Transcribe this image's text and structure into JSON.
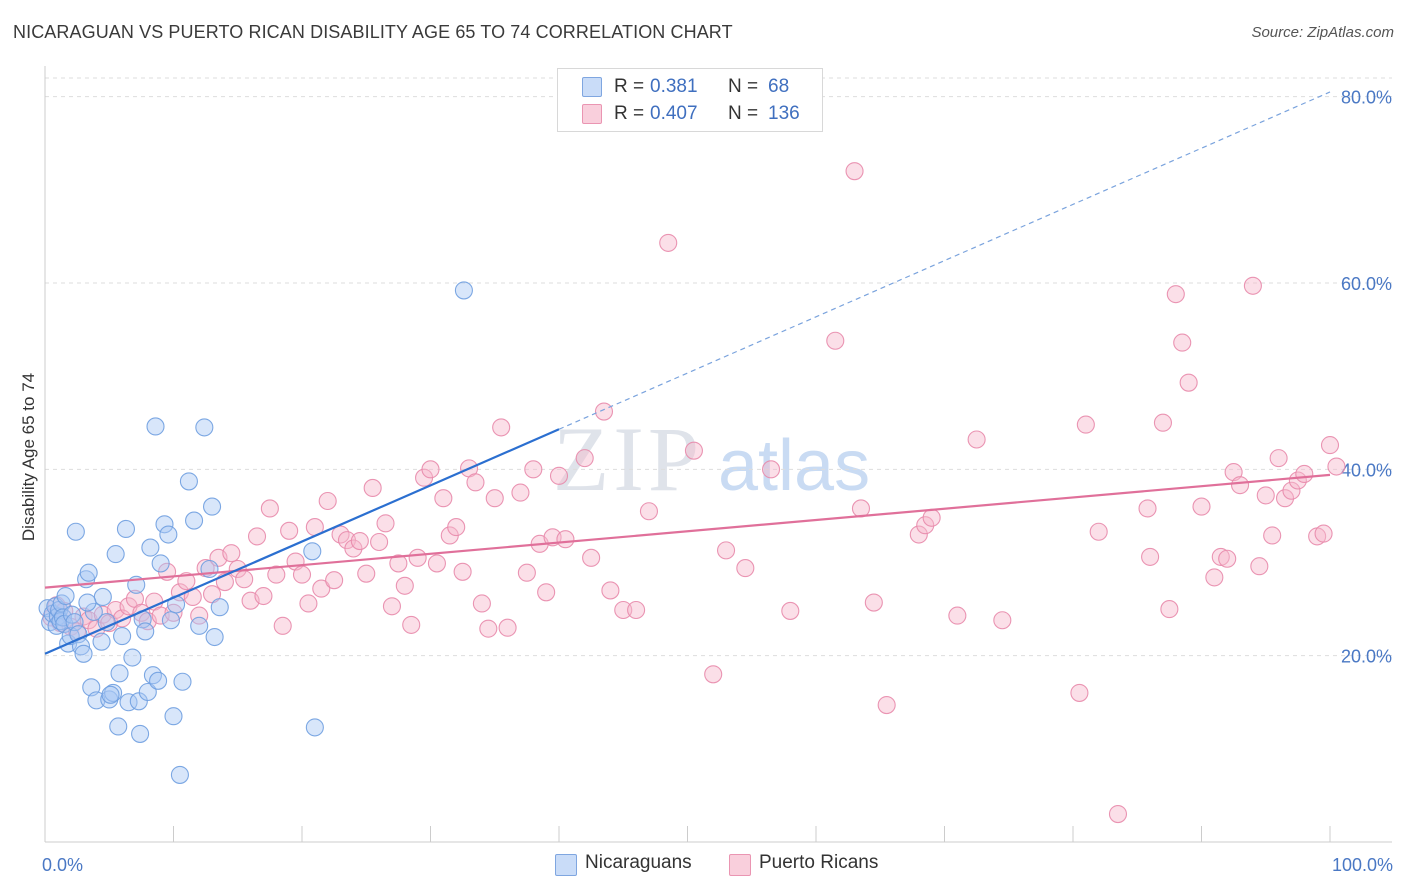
{
  "title": "NICARAGUAN VS PUERTO RICAN DISABILITY AGE 65 TO 74 CORRELATION CHART",
  "source": "Source: ZipAtlas.com",
  "watermark": {
    "zip": "ZIP",
    "atlas": "atlas"
  },
  "legend": {
    "rows": [
      {
        "r_label": "R =",
        "r_value": "0.381",
        "n_label": "N =",
        "n_value": "68",
        "color": "#a9c8f5"
      },
      {
        "r_label": "R =",
        "r_value": "0.407",
        "n_label": "N =",
        "n_value": "136",
        "color": "#f7b8cc"
      }
    ]
  },
  "bottom_legend": {
    "series1": "Nicaraguans",
    "series2": "Puerto Ricans"
  },
  "chart_data": {
    "type": "scatter",
    "title": "NICARAGUAN VS PUERTO RICAN DISABILITY AGE 65 TO 74 CORRELATION CHART",
    "xlabel": "",
    "ylabel": "Disability Age 65 to 74",
    "xlim": [
      0,
      100
    ],
    "ylim": [
      0,
      82
    ],
    "x_tick_labels": [
      {
        "value": 0,
        "label": "0.0%"
      },
      {
        "value": 100,
        "label": "100.0%"
      }
    ],
    "y_tick_labels": [
      {
        "value": 20,
        "label": "20.0%"
      },
      {
        "value": 40,
        "label": "40.0%"
      },
      {
        "value": 60,
        "label": "60.0%"
      },
      {
        "value": 80,
        "label": "80.0%"
      }
    ],
    "grid": true,
    "series": [
      {
        "name": "Nicaraguans",
        "color": "#6f9fe0",
        "fill": "#a9c8f5",
        "trend": {
          "x0": 0,
          "y0": 20.2,
          "x1": 40,
          "y1": 44.3,
          "dashed_to_x": 100,
          "dashed_to_y": 80.5,
          "color": "#2b6fd0"
        },
        "points": [
          [
            0.2,
            25.1
          ],
          [
            0.4,
            23.6
          ],
          [
            0.6,
            24.5
          ],
          [
            0.8,
            25.3
          ],
          [
            0.9,
            23.2
          ],
          [
            1.0,
            24.2
          ],
          [
            1.1,
            24.9
          ],
          [
            1.2,
            23.7
          ],
          [
            1.3,
            25.6
          ],
          [
            1.4,
            24.1
          ],
          [
            1.5,
            23.4
          ],
          [
            1.6,
            26.4
          ],
          [
            1.8,
            21.3
          ],
          [
            2.0,
            22.1
          ],
          [
            2.1,
            24.4
          ],
          [
            2.3,
            23.6
          ],
          [
            2.6,
            22.3
          ],
          [
            2.8,
            21.0
          ],
          [
            3.0,
            20.2
          ],
          [
            3.2,
            28.2
          ],
          [
            3.4,
            28.9
          ],
          [
            3.6,
            16.6
          ],
          [
            3.8,
            24.7
          ],
          [
            4.0,
            15.2
          ],
          [
            4.4,
            21.5
          ],
          [
            4.5,
            26.3
          ],
          [
            4.8,
            23.6
          ],
          [
            5.0,
            15.3
          ],
          [
            5.3,
            16.0
          ],
          [
            5.5,
            30.9
          ],
          [
            5.7,
            12.4
          ],
          [
            5.8,
            18.1
          ],
          [
            6.0,
            22.1
          ],
          [
            6.3,
            33.6
          ],
          [
            6.5,
            15.0
          ],
          [
            6.8,
            19.8
          ],
          [
            7.1,
            27.6
          ],
          [
            7.3,
            15.1
          ],
          [
            7.4,
            11.6
          ],
          [
            7.6,
            23.9
          ],
          [
            7.8,
            22.6
          ],
          [
            8.0,
            16.1
          ],
          [
            8.2,
            31.6
          ],
          [
            8.4,
            17.9
          ],
          [
            8.6,
            44.6
          ],
          [
            8.8,
            17.3
          ],
          [
            9.0,
            29.9
          ],
          [
            9.3,
            34.1
          ],
          [
            9.6,
            33.0
          ],
          [
            10.0,
            13.5
          ],
          [
            10.2,
            25.5
          ],
          [
            10.5,
            7.2
          ],
          [
            10.7,
            17.2
          ],
          [
            11.2,
            38.7
          ],
          [
            11.6,
            34.5
          ],
          [
            12.0,
            23.2
          ],
          [
            12.4,
            44.5
          ],
          [
            12.8,
            29.3
          ],
          [
            13.2,
            22.0
          ],
          [
            13.0,
            36.0
          ],
          [
            13.6,
            25.2
          ],
          [
            20.8,
            31.2
          ],
          [
            21.0,
            12.3
          ],
          [
            32.6,
            59.2
          ],
          [
            2.4,
            33.3
          ],
          [
            5.1,
            15.8
          ],
          [
            9.8,
            23.8
          ],
          [
            3.3,
            25.7
          ]
        ]
      },
      {
        "name": "Puerto Ricans",
        "color": "#e88aab",
        "fill": "#f7b8cc",
        "trend": {
          "x0": 0,
          "y0": 27.3,
          "x1": 100,
          "y1": 39.4,
          "color": "#e0709a"
        },
        "points": [
          [
            0.5,
            24.1
          ],
          [
            0.9,
            25.4
          ],
          [
            1.2,
            23.5
          ],
          [
            1.5,
            24.8
          ],
          [
            2.0,
            23.1
          ],
          [
            2.5,
            22.6
          ],
          [
            3.0,
            24.2
          ],
          [
            3.4,
            23.8
          ],
          [
            4.0,
            22.9
          ],
          [
            4.5,
            24.4
          ],
          [
            5.0,
            23.5
          ],
          [
            5.5,
            24.9
          ],
          [
            6.0,
            24.0
          ],
          [
            6.5,
            25.3
          ],
          [
            7.0,
            26.1
          ],
          [
            7.5,
            24.6
          ],
          [
            8.0,
            23.7
          ],
          [
            8.5,
            25.8
          ],
          [
            9.0,
            24.3
          ],
          [
            9.5,
            29.0
          ],
          [
            10.0,
            24.6
          ],
          [
            10.5,
            26.8
          ],
          [
            11.0,
            28.0
          ],
          [
            11.5,
            26.3
          ],
          [
            12.0,
            24.3
          ],
          [
            12.5,
            29.4
          ],
          [
            13.0,
            26.6
          ],
          [
            13.5,
            30.5
          ],
          [
            14.0,
            27.9
          ],
          [
            14.5,
            31.0
          ],
          [
            15.0,
            29.3
          ],
          [
            15.5,
            28.2
          ],
          [
            16.0,
            25.9
          ],
          [
            16.5,
            32.8
          ],
          [
            17.0,
            26.4
          ],
          [
            17.5,
            35.8
          ],
          [
            18.0,
            28.7
          ],
          [
            18.5,
            23.2
          ],
          [
            19.0,
            33.4
          ],
          [
            19.5,
            30.1
          ],
          [
            20.0,
            28.7
          ],
          [
            20.5,
            25.6
          ],
          [
            21.0,
            33.8
          ],
          [
            21.5,
            27.2
          ],
          [
            22.0,
            36.6
          ],
          [
            22.5,
            28.1
          ],
          [
            23.0,
            33.0
          ],
          [
            23.5,
            32.4
          ],
          [
            24.0,
            31.5
          ],
          [
            24.5,
            32.3
          ],
          [
            25.0,
            28.8
          ],
          [
            25.5,
            38.0
          ],
          [
            26.0,
            32.2
          ],
          [
            26.5,
            34.2
          ],
          [
            27.0,
            25.3
          ],
          [
            27.5,
            29.9
          ],
          [
            28.0,
            27.5
          ],
          [
            28.5,
            23.3
          ],
          [
            29.0,
            30.5
          ],
          [
            29.5,
            39.1
          ],
          [
            30.0,
            40.0
          ],
          [
            30.5,
            29.9
          ],
          [
            31.0,
            36.9
          ],
          [
            31.5,
            32.9
          ],
          [
            32.0,
            33.8
          ],
          [
            32.5,
            29.0
          ],
          [
            33.0,
            40.1
          ],
          [
            33.5,
            38.6
          ],
          [
            34.0,
            25.6
          ],
          [
            34.5,
            22.9
          ],
          [
            35.0,
            36.9
          ],
          [
            35.5,
            44.5
          ],
          [
            36.0,
            23.0
          ],
          [
            37.0,
            37.5
          ],
          [
            37.5,
            28.9
          ],
          [
            38.0,
            40.0
          ],
          [
            38.5,
            32.0
          ],
          [
            39.0,
            26.8
          ],
          [
            39.5,
            32.7
          ],
          [
            40.0,
            39.3
          ],
          [
            40.5,
            32.5
          ],
          [
            42.0,
            41.2
          ],
          [
            42.5,
            30.5
          ],
          [
            43.5,
            46.2
          ],
          [
            44.0,
            27.0
          ],
          [
            45.0,
            24.9
          ],
          [
            46.0,
            24.9
          ],
          [
            47.0,
            35.5
          ],
          [
            48.5,
            64.3
          ],
          [
            50.5,
            42.0
          ],
          [
            53.0,
            31.3
          ],
          [
            54.5,
            29.4
          ],
          [
            56.5,
            40.0
          ],
          [
            58.0,
            24.8
          ],
          [
            61.5,
            53.8
          ],
          [
            63.0,
            72.0
          ],
          [
            63.5,
            35.8
          ],
          [
            64.5,
            25.7
          ],
          [
            65.5,
            14.7
          ],
          [
            68.0,
            33.0
          ],
          [
            68.5,
            34.0
          ],
          [
            69.0,
            34.8
          ],
          [
            71.0,
            24.3
          ],
          [
            72.5,
            43.2
          ],
          [
            74.5,
            23.8
          ],
          [
            81.0,
            44.8
          ],
          [
            83.5,
            3.0
          ],
          [
            80.5,
            16.0
          ],
          [
            82.0,
            33.3
          ],
          [
            86.0,
            30.6
          ],
          [
            87.0,
            45.0
          ],
          [
            87.5,
            25.0
          ],
          [
            88.0,
            58.8
          ],
          [
            88.5,
            53.6
          ],
          [
            89.0,
            49.3
          ],
          [
            90.0,
            36.0
          ],
          [
            91.0,
            28.4
          ],
          [
            91.5,
            30.6
          ],
          [
            92.0,
            30.4
          ],
          [
            92.5,
            39.7
          ],
          [
            93.0,
            38.3
          ],
          [
            94.0,
            59.7
          ],
          [
            94.5,
            29.6
          ],
          [
            95.0,
            37.2
          ],
          [
            95.5,
            32.9
          ],
          [
            96.0,
            41.2
          ],
          [
            96.5,
            36.9
          ],
          [
            97.0,
            37.7
          ],
          [
            97.5,
            38.8
          ],
          [
            98.0,
            39.5
          ],
          [
            99.0,
            32.8
          ],
          [
            99.5,
            33.1
          ],
          [
            100.0,
            42.6
          ],
          [
            100.5,
            40.3
          ],
          [
            85.8,
            35.8
          ],
          [
            52.0,
            18.0
          ]
        ]
      }
    ]
  }
}
